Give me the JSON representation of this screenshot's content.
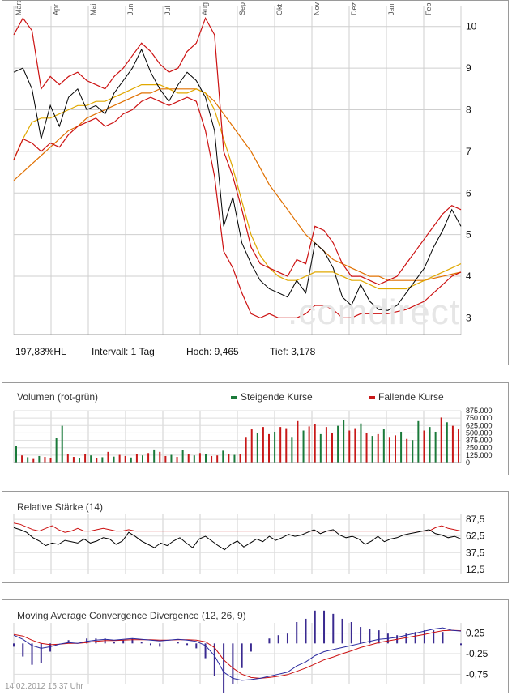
{
  "chart_data": [
    {
      "type": "line",
      "name": "price",
      "x_labels": [
        "März",
        "Apr",
        "Mai",
        "Jun",
        "Jul",
        "Aug",
        "Sep",
        "Okt",
        "Nov",
        "Dez",
        "Jan",
        "Feb"
      ],
      "y_ticks": [
        "10",
        "9",
        "8",
        "7",
        "6",
        "5",
        "4",
        "3"
      ],
      "ylim": [
        2.6,
        10.5
      ],
      "grid": true,
      "series": [
        {
          "color": "#000000",
          "values": [
            8.9,
            9.0,
            8.5,
            7.3,
            8.1,
            7.6,
            8.3,
            8.5,
            8.0,
            8.1,
            7.9,
            8.4,
            8.7,
            9.0,
            9.45,
            8.9,
            8.5,
            8.2,
            8.6,
            8.9,
            8.7,
            8.3,
            7.5,
            5.2,
            5.9,
            4.8,
            4.3,
            3.9,
            3.7,
            3.6,
            3.5,
            3.9,
            3.6,
            4.8,
            4.6,
            4.2,
            3.5,
            3.3,
            3.8,
            3.4,
            3.2,
            3.18,
            3.3,
            3.6,
            3.9,
            4.2,
            4.7,
            5.1,
            5.6,
            5.2
          ]
        },
        {
          "color": "#cc1111",
          "values": [
            9.8,
            10.2,
            9.9,
            8.5,
            8.8,
            8.6,
            8.8,
            8.9,
            8.7,
            8.6,
            8.5,
            8.8,
            9.0,
            9.3,
            9.6,
            9.4,
            9.1,
            8.9,
            9.0,
            9.4,
            9.6,
            10.2,
            9.8,
            7.0,
            6.4,
            5.6,
            4.7,
            4.3,
            4.2,
            4.1,
            4.0,
            4.4,
            4.3,
            5.2,
            5.1,
            4.8,
            4.3,
            4.0,
            4.0,
            3.9,
            3.8,
            3.9,
            4.0,
            4.3,
            4.6,
            4.9,
            5.2,
            5.5,
            5.7,
            5.6
          ]
        },
        {
          "color": "#cc1111",
          "values": [
            6.8,
            7.3,
            7.2,
            7.0,
            7.2,
            7.1,
            7.4,
            7.6,
            7.7,
            7.8,
            7.6,
            7.7,
            7.9,
            8.0,
            8.2,
            8.3,
            8.2,
            8.1,
            8.2,
            8.3,
            8.2,
            7.5,
            6.4,
            4.6,
            4.2,
            3.6,
            3.1,
            3.0,
            3.1,
            3.0,
            3.0,
            3.0,
            3.1,
            3.3,
            3.3,
            3.2,
            3.0,
            3.0,
            3.1,
            3.1,
            3.1,
            3.1,
            3.15,
            3.2,
            3.3,
            3.4,
            3.6,
            3.8,
            4.0,
            4.1
          ]
        },
        {
          "color": "#e0a800",
          "values": [
            6.8,
            7.3,
            7.7,
            7.8,
            7.8,
            7.9,
            8.0,
            8.1,
            8.1,
            8.2,
            8.2,
            8.3,
            8.4,
            8.5,
            8.6,
            8.6,
            8.6,
            8.5,
            8.4,
            8.4,
            8.5,
            8.4,
            8.0,
            7.3,
            6.6,
            5.8,
            5.0,
            4.5,
            4.2,
            4.0,
            3.9,
            3.9,
            4.0,
            4.1,
            4.1,
            4.1,
            4.0,
            3.9,
            3.9,
            3.8,
            3.7,
            3.7,
            3.7,
            3.7,
            3.8,
            3.9,
            4.0,
            4.1,
            4.2,
            4.3
          ]
        },
        {
          "color": "#e07000",
          "values": [
            6.3,
            6.5,
            6.7,
            6.9,
            7.1,
            7.3,
            7.5,
            7.6,
            7.8,
            7.9,
            8.0,
            8.1,
            8.2,
            8.3,
            8.4,
            8.4,
            8.5,
            8.5,
            8.5,
            8.5,
            8.5,
            8.4,
            8.2,
            7.9,
            7.6,
            7.3,
            7.0,
            6.6,
            6.2,
            5.9,
            5.6,
            5.3,
            5.0,
            4.8,
            4.6,
            4.4,
            4.3,
            4.2,
            4.1,
            4.0,
            4.0,
            3.9,
            3.9,
            3.9,
            3.9,
            3.9,
            3.95,
            4.0,
            4.05,
            4.1
          ]
        }
      ]
    },
    {
      "type": "bar",
      "name": "volume",
      "title": "Volumen (rot-grün)",
      "legend_up": "Steigende Kurse",
      "legend_down": "Fallende Kurse",
      "up_color": "#1a7a3a",
      "down_color": "#c81818",
      "y_ticks": [
        "875.000",
        "750.000",
        "625.000",
        "500.000",
        "375.000",
        "250.000",
        "125.000",
        "0"
      ],
      "ylim": [
        0,
        875000
      ],
      "values": [
        280000,
        120000,
        90000,
        60000,
        110000,
        95000,
        70000,
        410000,
        620000,
        150000,
        95000,
        80000,
        140000,
        120000,
        75000,
        90000,
        180000,
        100000,
        130000,
        110000,
        85000,
        150000,
        120000,
        160000,
        220000,
        180000,
        110000,
        130000,
        95000,
        210000,
        140000,
        120000,
        160000,
        150000,
        110000,
        120000,
        200000,
        140000,
        130000,
        150000,
        420000,
        560000,
        500000,
        600000,
        480000,
        520000,
        600000,
        580000,
        420000,
        700000,
        540000,
        610000,
        650000,
        480000,
        600000,
        500000,
        620000,
        720000,
        540000,
        580000,
        660000,
        500000,
        450000,
        480000,
        560000,
        420000,
        460000,
        520000,
        400000,
        380000,
        700000,
        540000,
        600000,
        520000,
        760000,
        680000,
        620000,
        560000
      ],
      "directions": [
        "up",
        "down",
        "up",
        "down",
        "up",
        "down",
        "down",
        "up",
        "up",
        "down",
        "down",
        "up",
        "down",
        "up",
        "down",
        "up",
        "down",
        "up",
        "down",
        "down",
        "up",
        "down",
        "up",
        "down",
        "up",
        "down",
        "down",
        "up",
        "down",
        "up",
        "down",
        "up",
        "down",
        "up",
        "down",
        "down",
        "up",
        "down",
        "up",
        "down",
        "down",
        "down",
        "up",
        "down",
        "down",
        "up",
        "down",
        "down",
        "up",
        "down",
        "up",
        "down",
        "down",
        "up",
        "down",
        "down",
        "up",
        "up",
        "down",
        "down",
        "up",
        "down",
        "up",
        "down",
        "up",
        "down",
        "down",
        "up",
        "down",
        "up",
        "up",
        "down",
        "up",
        "up",
        "down",
        "up",
        "down",
        "down"
      ]
    },
    {
      "type": "line",
      "name": "rsi",
      "title": "Relative Stärke (14)",
      "y_ticks": [
        "87,5",
        "62,5",
        "37,5",
        "12,5"
      ],
      "ylim": [
        5,
        95
      ],
      "series": [
        {
          "color": "#000000",
          "values": [
            75,
            72,
            68,
            60,
            55,
            48,
            52,
            50,
            56,
            54,
            52,
            58,
            52,
            55,
            60,
            58,
            50,
            55,
            68,
            62,
            55,
            50,
            45,
            52,
            48,
            55,
            60,
            52,
            45,
            58,
            62,
            55,
            48,
            42,
            50,
            55,
            46,
            52,
            58,
            54,
            62,
            56,
            60,
            65,
            62,
            64,
            68,
            72,
            66,
            70,
            72,
            64,
            60,
            62,
            58,
            50,
            55,
            62,
            54,
            58,
            60,
            64,
            66,
            68,
            70,
            72,
            66,
            64,
            60,
            62,
            58
          ]
        },
        {
          "color": "#cc1111",
          "values": [
            82,
            80,
            76,
            72,
            70,
            74,
            78,
            72,
            68,
            70,
            74,
            70,
            70,
            72,
            74,
            72,
            70,
            70,
            72,
            70,
            70,
            70,
            70,
            70,
            70,
            70,
            70,
            70,
            70,
            70,
            70,
            70,
            70,
            70,
            70,
            70,
            70,
            70,
            70,
            70,
            70,
            70,
            70,
            70,
            70,
            70,
            70,
            70,
            70,
            70,
            70,
            70,
            70,
            70,
            70,
            70,
            70,
            70,
            70,
            70,
            70,
            70,
            70,
            70,
            70,
            70,
            75,
            78,
            74,
            72,
            70
          ]
        }
      ]
    },
    {
      "type": "line",
      "name": "macd",
      "title": "Moving Average Convergence Divergence (12, 26, 9)",
      "y_ticks": [
        "0,25",
        "-0,25",
        "-0,75"
      ],
      "ylim": [
        -1.0,
        0.5
      ],
      "series": [
        {
          "color": "#2a2aa0",
          "values": [
            0.2,
            0.1,
            -0.05,
            -0.12,
            -0.08,
            -0.02,
            0.02,
            0.0,
            0.05,
            0.08,
            0.1,
            0.08,
            0.1,
            0.12,
            0.1,
            0.08,
            0.06,
            0.08,
            0.1,
            0.08,
            0.05,
            -0.05,
            -0.3,
            -0.7,
            -0.85,
            -0.9,
            -0.88,
            -0.85,
            -0.8,
            -0.75,
            -0.7,
            -0.55,
            -0.45,
            -0.3,
            -0.2,
            -0.15,
            -0.1,
            -0.05,
            0.0,
            0.05,
            0.1,
            0.12,
            0.15,
            0.2,
            0.25,
            0.3,
            0.35,
            0.38,
            0.32,
            0.3
          ]
        },
        {
          "color": "#cc1111",
          "values": [
            0.22,
            0.18,
            0.08,
            0.0,
            -0.03,
            -0.02,
            0.0,
            0.0,
            0.02,
            0.05,
            0.07,
            0.07,
            0.08,
            0.09,
            0.09,
            0.09,
            0.08,
            0.08,
            0.09,
            0.09,
            0.08,
            0.04,
            -0.1,
            -0.4,
            -0.6,
            -0.75,
            -0.83,
            -0.85,
            -0.83,
            -0.8,
            -0.76,
            -0.68,
            -0.6,
            -0.5,
            -0.4,
            -0.33,
            -0.25,
            -0.18,
            -0.1,
            -0.04,
            0.02,
            0.06,
            0.1,
            0.14,
            0.18,
            0.22,
            0.27,
            0.31,
            0.32,
            0.31
          ]
        }
      ]
    }
  ],
  "stats": {
    "hl": "197,83%HL",
    "interval": "Intervall: 1 Tag",
    "high": "Hoch:  9,465",
    "low": "Tief:  3,178"
  },
  "watermark": ".comdirect",
  "footer": "14.02.2012 15:37 Uhr"
}
